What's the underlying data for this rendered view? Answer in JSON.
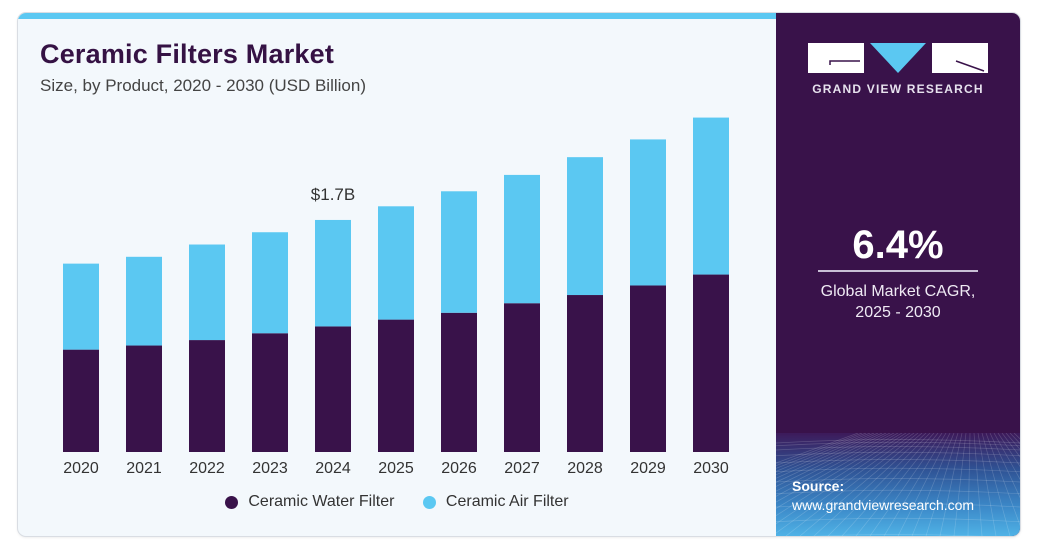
{
  "header": {
    "title": "Ceramic Filters Market",
    "subtitle": "Size, by Product, 2020 - 2030 (USD Billion)"
  },
  "brand": {
    "name": "GRAND VIEW RESEARCH",
    "colors": {
      "dark": "#39124a",
      "light": "#5bc8f2"
    }
  },
  "stat": {
    "value": "6.4%",
    "label_line1": "Global Market CAGR,",
    "label_line2": "2025 - 2030"
  },
  "source": {
    "label": "Source:",
    "url": "www.grandviewresearch.com"
  },
  "chart_data": {
    "type": "bar",
    "stacked": true,
    "title": "Ceramic Filters Market",
    "subtitle": "Size, by Product, 2020 - 2030 (USD Billion)",
    "xlabel": "",
    "ylabel": "USD Billion",
    "categories": [
      "2020",
      "2021",
      "2022",
      "2023",
      "2024",
      "2025",
      "2026",
      "2027",
      "2028",
      "2029",
      "2030"
    ],
    "series": [
      {
        "name": "Ceramic Water Filter",
        "color": "#39124a",
        "values": [
          0.75,
          0.78,
          0.82,
          0.87,
          0.92,
          0.97,
          1.02,
          1.09,
          1.15,
          1.22,
          1.3
        ]
      },
      {
        "name": "Ceramic Air Filter",
        "color": "#5bc8f2",
        "values": [
          0.63,
          0.65,
          0.7,
          0.74,
          0.78,
          0.83,
          0.89,
          0.94,
          1.01,
          1.07,
          1.15
        ]
      }
    ],
    "annotations": [
      {
        "category": "2024",
        "text": "$1.7B"
      }
    ],
    "ylim": [
      0,
      2.5
    ],
    "grid": false,
    "legend": "bottom-center"
  }
}
